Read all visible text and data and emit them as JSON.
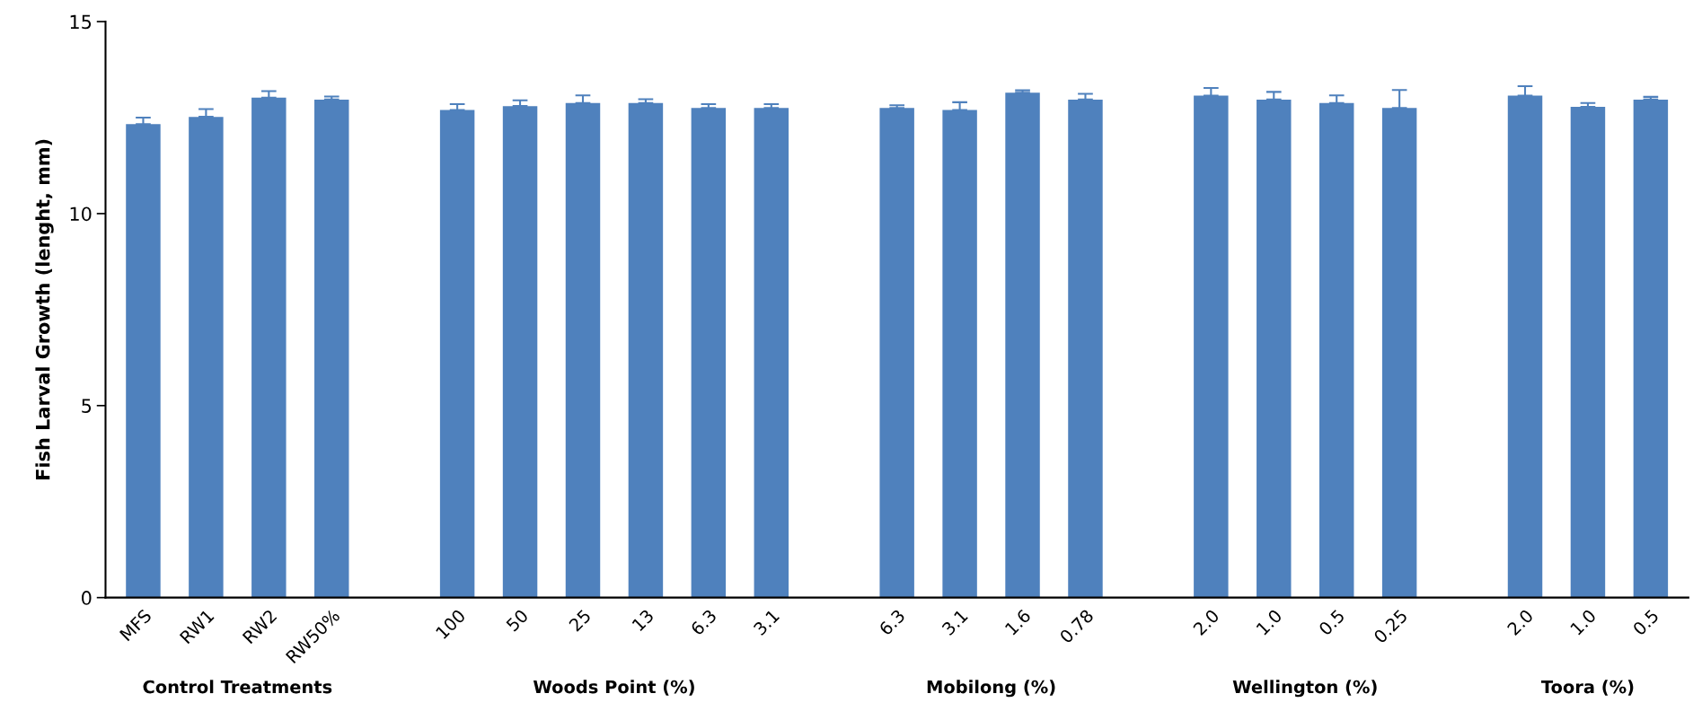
{
  "chart_data": {
    "type": "bar",
    "ylabel": "Fish Larval Growth (lenght, mm)",
    "categories": [
      "MFS",
      "RW1",
      "RW2",
      "RW50%",
      null,
      "100",
      "50",
      "25",
      "13",
      "6.3",
      "3.1",
      null,
      "6.3",
      "3.1",
      "1.6",
      "0.78",
      null,
      "2.0",
      "1.0",
      "0.5",
      "0.25",
      null,
      "2.0",
      "1.0",
      "0.5"
    ],
    "values": [
      12.33,
      12.52,
      13.02,
      12.97,
      null,
      12.7,
      12.8,
      12.88,
      12.88,
      12.75,
      12.75,
      null,
      12.75,
      12.7,
      13.15,
      12.97,
      null,
      13.07,
      12.97,
      12.88,
      12.75,
      null,
      13.07,
      12.78,
      12.97
    ],
    "errors": [
      0.17,
      0.2,
      0.17,
      0.08,
      null,
      0.15,
      0.15,
      0.2,
      0.1,
      0.1,
      0.1,
      null,
      0.07,
      0.2,
      0.06,
      0.15,
      null,
      0.2,
      0.2,
      0.2,
      0.47,
      null,
      0.25,
      0.1,
      0.07
    ],
    "color": "#4f81bd",
    "ylim": [
      0,
      15
    ],
    "yticks": [
      0,
      5,
      10,
      15
    ],
    "grid": false,
    "legend": false,
    "annotations": [
      "Control Treatments",
      "Woods Point (%)",
      "Mobilong (%)",
      "Wellington (%)",
      "Toora (%)"
    ]
  }
}
